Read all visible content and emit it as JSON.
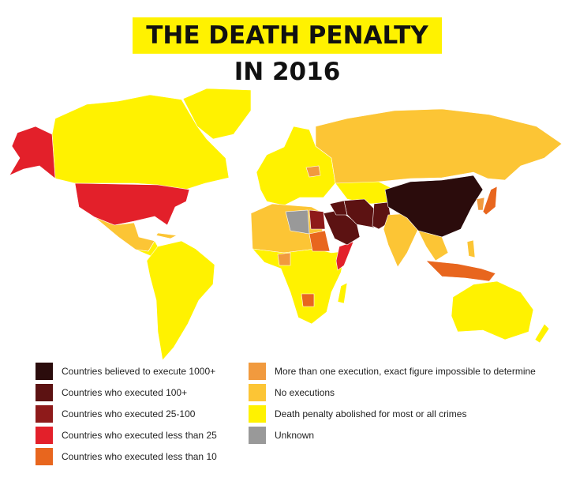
{
  "title": "THE DEATH PENALTY IN 2016",
  "legend": [
    {
      "label": "Countries believed to execute 1000+",
      "color": "#2b0c0c"
    },
    {
      "label": "Countries who executed 100+",
      "color": "#5c1212"
    },
    {
      "label": "Countries who executed 25-100",
      "color": "#8e1a1a"
    },
    {
      "label": "Countries who executed less than 25",
      "color": "#e3202a"
    },
    {
      "label": "Countries who executed less than 10",
      "color": "#e8661e"
    },
    {
      "label": "More than one execution, exact figure impossible to determine",
      "color": "#f19a3e"
    },
    {
      "label": "No executions",
      "color": "#fcc535"
    },
    {
      "label": "Death penalty abolished for most or all crimes",
      "color": "#fff200"
    },
    {
      "label": "Unknown",
      "color": "#999999"
    }
  ]
}
